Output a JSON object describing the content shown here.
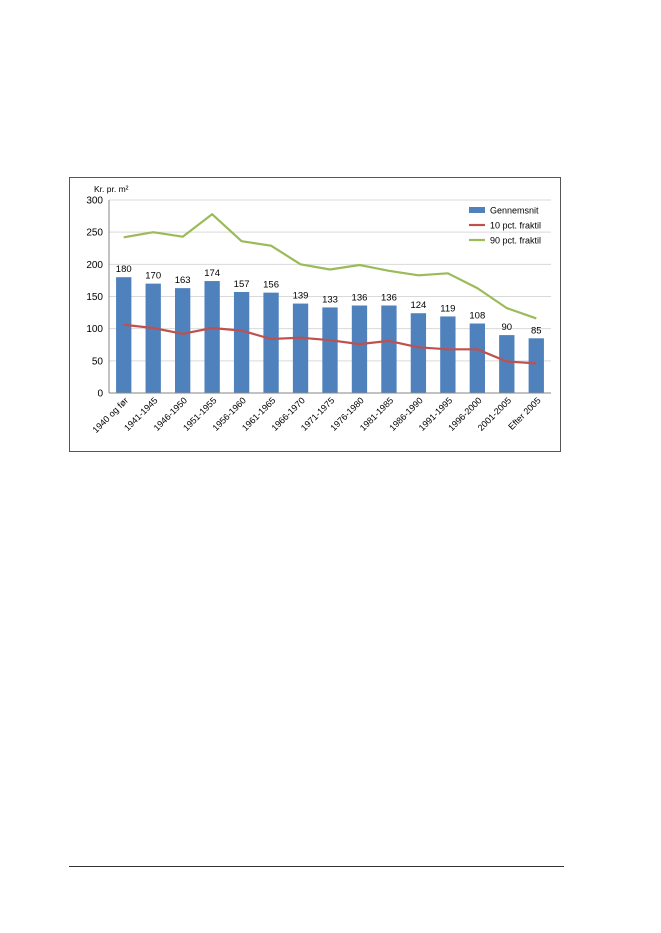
{
  "chart_data": {
    "type": "bar",
    "ylabel": "Kr. pr. m²",
    "ylim": [
      0,
      300
    ],
    "yticks": [
      0,
      50,
      100,
      150,
      200,
      250,
      300
    ],
    "grid": true,
    "legend_position": "top-right",
    "categories": [
      "1940 og før",
      "1941-1945",
      "1946-1950",
      "1951-1955",
      "1956-1960",
      "1961-1965",
      "1966-1970",
      "1971-1975",
      "1976-1980",
      "1981-1985",
      "1986-1990",
      "1991-1995",
      "1996-2000",
      "2001-2005",
      "Efter 2005"
    ],
    "series": [
      {
        "name": "Gennemsnit",
        "type": "bar",
        "color": "#4F81BD",
        "values": [
          180,
          170,
          163,
          174,
          157,
          156,
          139,
          133,
          136,
          136,
          124,
          119,
          108,
          90,
          85
        ],
        "data_labels": true
      },
      {
        "name": "10 pct. fraktil",
        "type": "line",
        "color": "#C0504D",
        "values": [
          106,
          101,
          92,
          101,
          97,
          84,
          86,
          82,
          76,
          81,
          71,
          68,
          68,
          49,
          46
        ]
      },
      {
        "name": "90 pct. fraktil",
        "type": "line",
        "color": "#9BBB59",
        "values": [
          242,
          250,
          243,
          278,
          236,
          229,
          200,
          192,
          199,
          190,
          183,
          186,
          163,
          132,
          116
        ]
      }
    ]
  }
}
